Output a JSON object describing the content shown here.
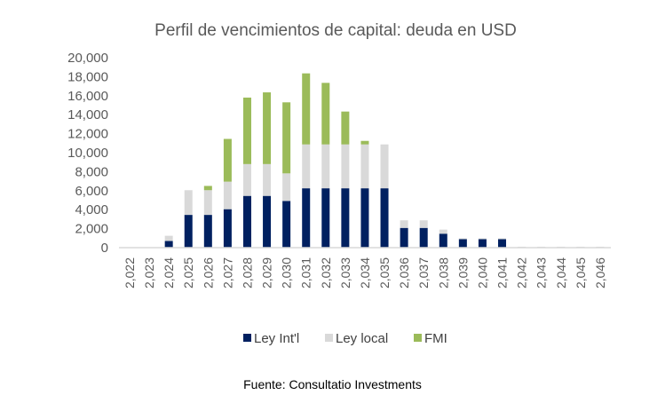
{
  "chart_data": {
    "type": "bar",
    "stacked": true,
    "title": "Perfil de vencimientos de capital: deuda en USD",
    "xlabel": "",
    "ylabel": "",
    "ylim": [
      0,
      20000
    ],
    "yticks": [
      "0",
      "2,000",
      "4,000",
      "6,000",
      "8,000",
      "10,000",
      "12,000",
      "14,000",
      "16,000",
      "18,000",
      "20,000"
    ],
    "categories": [
      "2,022",
      "2,023",
      "2,024",
      "2,025",
      "2,026",
      "2,027",
      "2,028",
      "2,029",
      "2,030",
      "2,031",
      "2,032",
      "2,033",
      "2,034",
      "2,035",
      "2,036",
      "2,037",
      "2,038",
      "2,039",
      "2,040",
      "2,041",
      "2,042",
      "2,043",
      "2,044",
      "2,045",
      "2,046"
    ],
    "series": [
      {
        "name": "Ley Int'l",
        "color": "#002060",
        "values": [
          0,
          0,
          700,
          3450,
          3450,
          4050,
          5450,
          5450,
          4920,
          6250,
          6250,
          6250,
          6250,
          6250,
          2080,
          2080,
          1470,
          900,
          900,
          900,
          60,
          60,
          60,
          60,
          60
        ]
      },
      {
        "name": "Ley local",
        "color": "#d9d9d9",
        "values": [
          0,
          0,
          550,
          2600,
          2600,
          2900,
          3350,
          3350,
          2900,
          4620,
          4620,
          4620,
          4620,
          4620,
          800,
          800,
          430,
          80,
          80,
          80,
          40,
          40,
          40,
          40,
          40
        ]
      },
      {
        "name": "FMI",
        "color": "#9bbb59",
        "values": [
          0,
          0,
          0,
          0,
          450,
          4500,
          7000,
          7550,
          7480,
          7480,
          6480,
          3460,
          370,
          0,
          0,
          0,
          0,
          0,
          0,
          0,
          0,
          0,
          0,
          0,
          0
        ]
      }
    ],
    "grid": false,
    "legend": "bottom"
  },
  "source": "Fuente: Consultatio Investments"
}
